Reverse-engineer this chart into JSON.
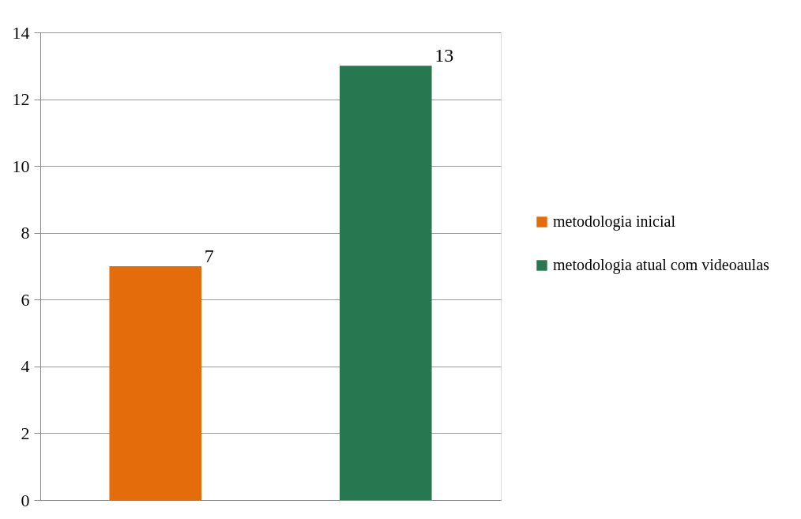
{
  "chart_data": {
    "type": "bar",
    "categories": [
      null,
      null
    ],
    "series": [
      {
        "name": "metodologia inicial",
        "color": "#e46c0a",
        "values": [
          7,
          null
        ]
      },
      {
        "name": "metodologia atual com videoaulas",
        "color": "#277850",
        "values": [
          null,
          13
        ]
      }
    ],
    "ylim": [
      0,
      14
    ],
    "yticks": [
      0,
      2,
      4,
      6,
      8,
      10,
      12,
      14
    ],
    "grid": "y",
    "legend": "right",
    "data_labels": true,
    "tick_labels": "y"
  }
}
